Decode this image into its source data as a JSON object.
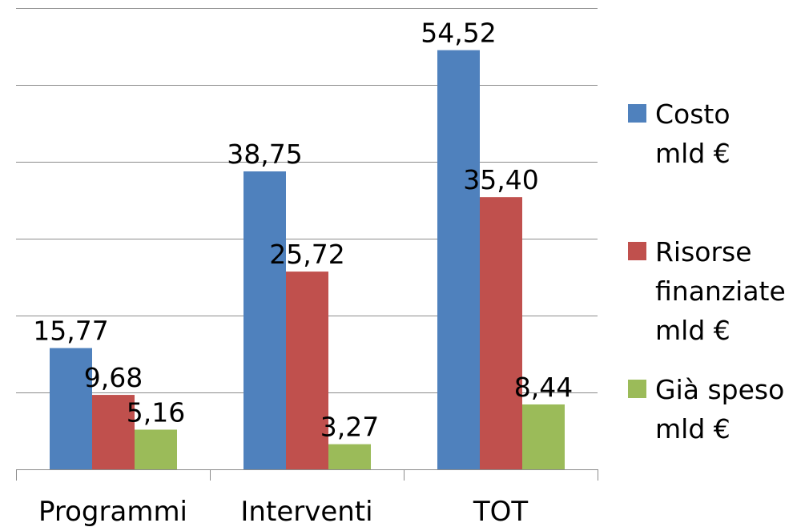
{
  "chart_data": {
    "type": "bar",
    "categories": [
      "Programmi",
      "Interventi",
      "TOT"
    ],
    "series": [
      {
        "name": "Costo mld €",
        "color": "#4F81BD",
        "values": [
          15.77,
          38.75,
          54.52
        ],
        "labels": [
          "15,77",
          "38,75",
          "54,52"
        ]
      },
      {
        "name": "Risorse finanziate mld €",
        "color": "#C0504D",
        "values": [
          9.68,
          25.72,
          35.4
        ],
        "labels": [
          "9,68",
          "25,72",
          "35,40"
        ]
      },
      {
        "name": "Già speso mld €",
        "color": "#9BBB59",
        "values": [
          5.16,
          3.27,
          8.44
        ],
        "labels": [
          "5,16",
          "3,27",
          "8,44"
        ]
      }
    ],
    "ylim": [
      0,
      60
    ],
    "y_gridline_step": 10,
    "grid": true,
    "y_tick_labels_shown": false,
    "data_labels": true,
    "legend_position": "right",
    "legend_lines": [
      [
        "Costo",
        "mld €"
      ],
      [
        "Risorse",
        "finanziate",
        "mld €"
      ],
      [
        "Già speso",
        "mld €"
      ]
    ]
  }
}
